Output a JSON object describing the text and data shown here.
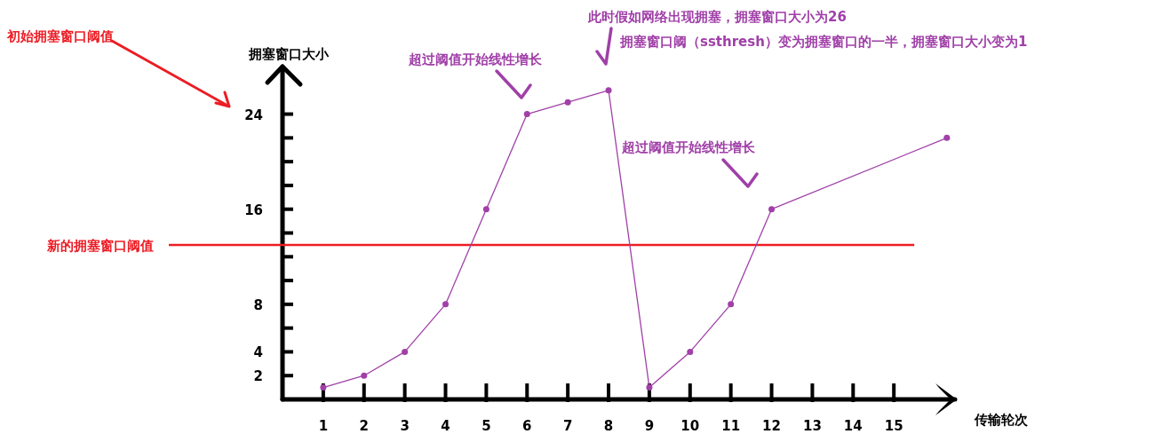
{
  "chart_data": {
    "type": "line",
    "xlabel": "传输轮次",
    "ylabel": "拥塞窗口大小",
    "xlim": [
      0,
      16.5
    ],
    "ylim": [
      0,
      28
    ],
    "xticks": [
      1,
      2,
      3,
      4,
      5,
      6,
      7,
      8,
      9,
      10,
      11,
      12,
      13,
      14,
      15
    ],
    "yticks": [
      2,
      4,
      {
        "value": 6,
        "label": null
      },
      8,
      {
        "value": 10,
        "label": null
      },
      {
        "value": 12,
        "label": null
      },
      {
        "value": 14,
        "label": null
      },
      16,
      {
        "value": 18,
        "label": null
      },
      {
        "value": 20,
        "label": null
      },
      {
        "value": 22,
        "label": null
      },
      24
    ],
    "series": [
      {
        "color": "#a040a8",
        "x": [
          1,
          2,
          3,
          4,
          5,
          6,
          7,
          8,
          9,
          10,
          11,
          12,
          16.3
        ],
        "values": [
          1,
          2,
          4,
          8,
          16,
          24,
          25,
          26,
          1,
          4,
          8,
          16,
          22
        ]
      }
    ],
    "marker": "circle",
    "line_style": "solid",
    "grid": false,
    "ref_lines": [
      {
        "axis": "y",
        "value": 13,
        "label": "新的拥塞窗口阈值",
        "color": "#ed1c24"
      }
    ],
    "annotations": [
      "初始拥塞窗口阈值",
      "超过阈值开始线性增长",
      "此时假如网络出现拥塞，拥塞窗口大小为26",
      "拥塞窗口阈（ssthresh）变为拥塞窗口的一半，拥塞窗口大小变为1",
      "超过阈值开始线性增长"
    ]
  }
}
